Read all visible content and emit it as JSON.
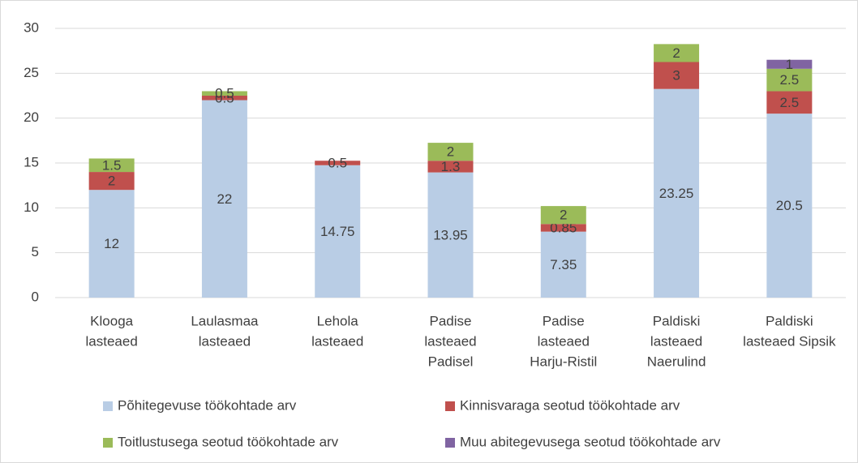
{
  "chart_data": {
    "type": "stacked_bar",
    "categories": [
      [
        "Klooga",
        "lasteaed"
      ],
      [
        "Laulasmaa",
        "lasteaed"
      ],
      [
        "Lehola",
        "lasteaed"
      ],
      [
        "Padise",
        "lasteaed",
        "Padisel"
      ],
      [
        "Padise",
        "lasteaed",
        "Harju-Ristil"
      ],
      [
        "Paldiski",
        "lasteaed",
        "Naerulind"
      ],
      [
        "Paldiski",
        "lasteaed Sipsik"
      ]
    ],
    "series": [
      {
        "name": "Põhitegevuse töökohtade arv",
        "color": "#b9cde5",
        "values": [
          12,
          22,
          14.75,
          13.95,
          7.35,
          23.25,
          20.5
        ]
      },
      {
        "name": "Kinnisvaraga seotud töökohtade arv",
        "color": "#c0504d",
        "values": [
          2,
          0.5,
          0.5,
          1.3,
          0.85,
          3,
          2.5
        ]
      },
      {
        "name": "Toitlustusega seotud töökohtade arv",
        "color": "#9bbb59",
        "values": [
          1.5,
          0.5,
          null,
          2,
          2,
          2,
          2.5
        ]
      },
      {
        "name": "Muu abitegevusega seotud töökohtade arv",
        "color": "#8064a2",
        "values": [
          null,
          null,
          null,
          null,
          null,
          null,
          1
        ]
      }
    ],
    "ylim": [
      0,
      30
    ],
    "yticks": [
      0,
      5,
      10,
      15,
      20,
      25,
      30
    ],
    "grid": true
  }
}
